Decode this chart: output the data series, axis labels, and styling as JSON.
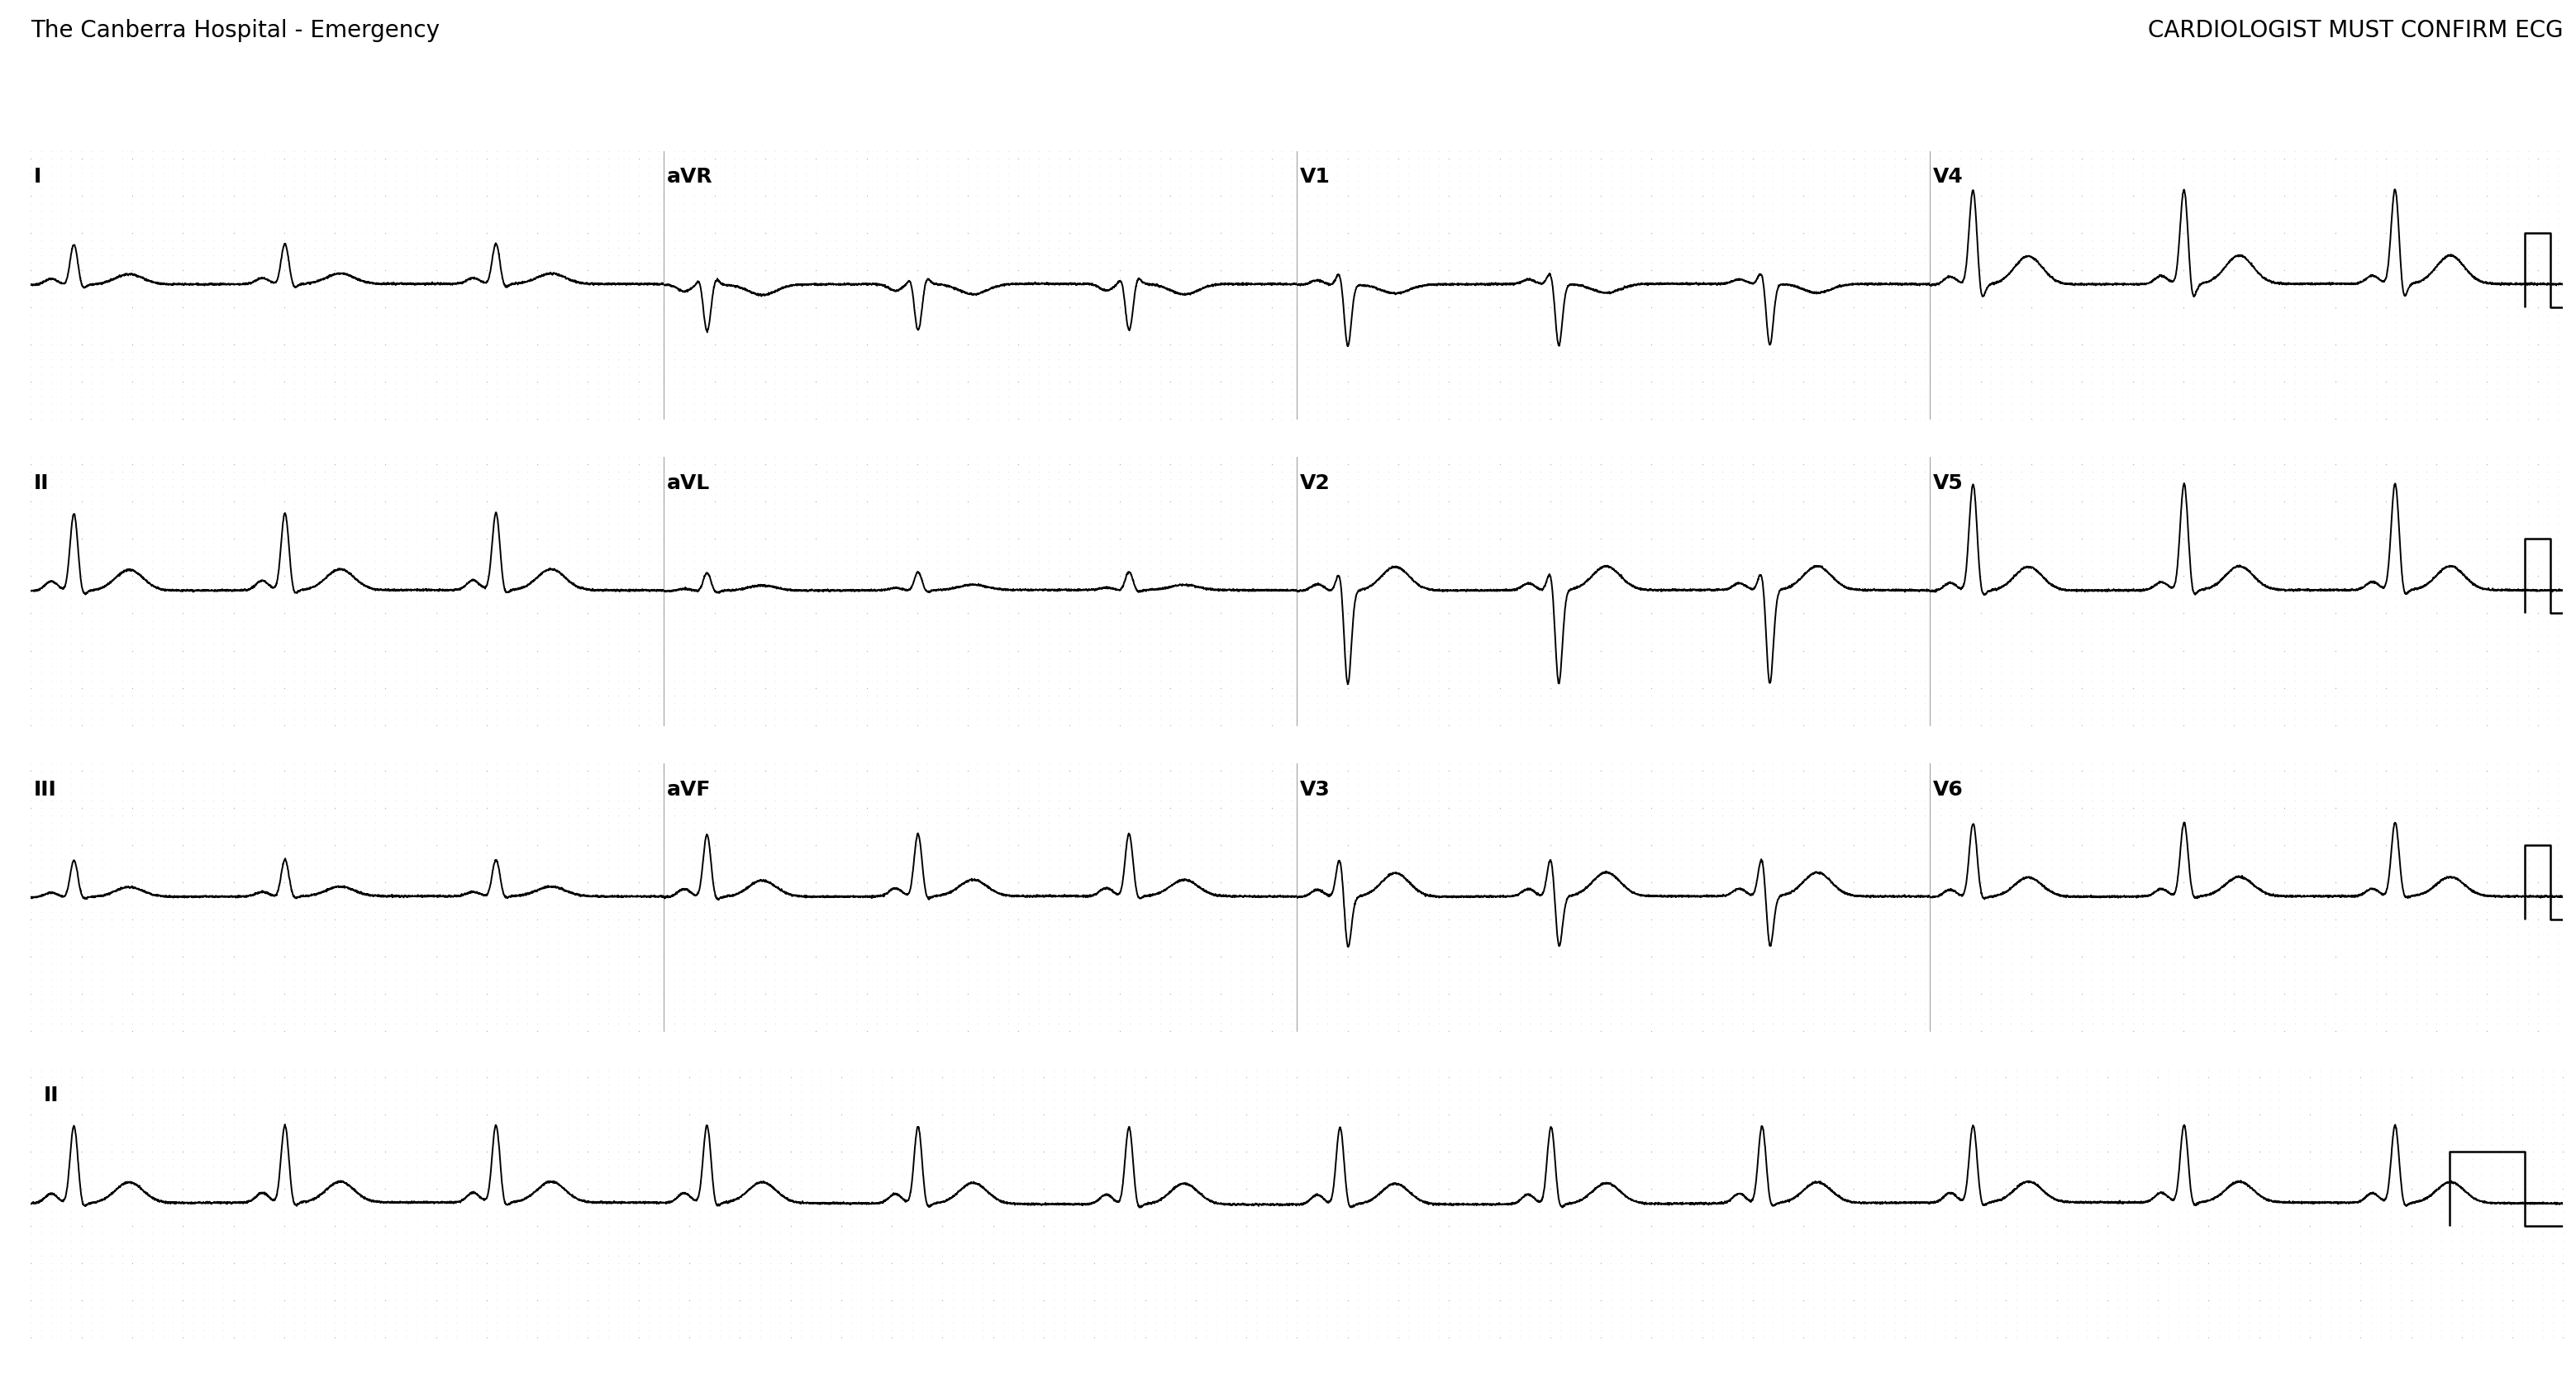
{
  "title_left": "The Canberra Hospital - Emergency",
  "title_right": "CARDIOLOGIST MUST CONFIRM ECG",
  "bg_color": "#ffffff",
  "grid_dot_color": "#aaaaaa",
  "ecg_color": "#000000",
  "font_family": "Courier New",
  "title_fontsize": 20,
  "label_fontsize": 18,
  "hr": 72,
  "leads_row1": [
    "I",
    "aVR",
    "V1",
    "V4"
  ],
  "leads_row2": [
    "II",
    "aVL",
    "V2",
    "V5"
  ],
  "leads_row3": [
    "III",
    "aVF",
    "V3",
    "V6"
  ],
  "rhythm_lead": "II",
  "minor_step_s": 0.04,
  "major_step_s": 0.2,
  "minor_step_mv": 0.1,
  "major_step_mv": 0.5,
  "seg_duration": 2.5,
  "long_duration": 10.0,
  "ylim": [
    -1.8,
    1.8
  ]
}
